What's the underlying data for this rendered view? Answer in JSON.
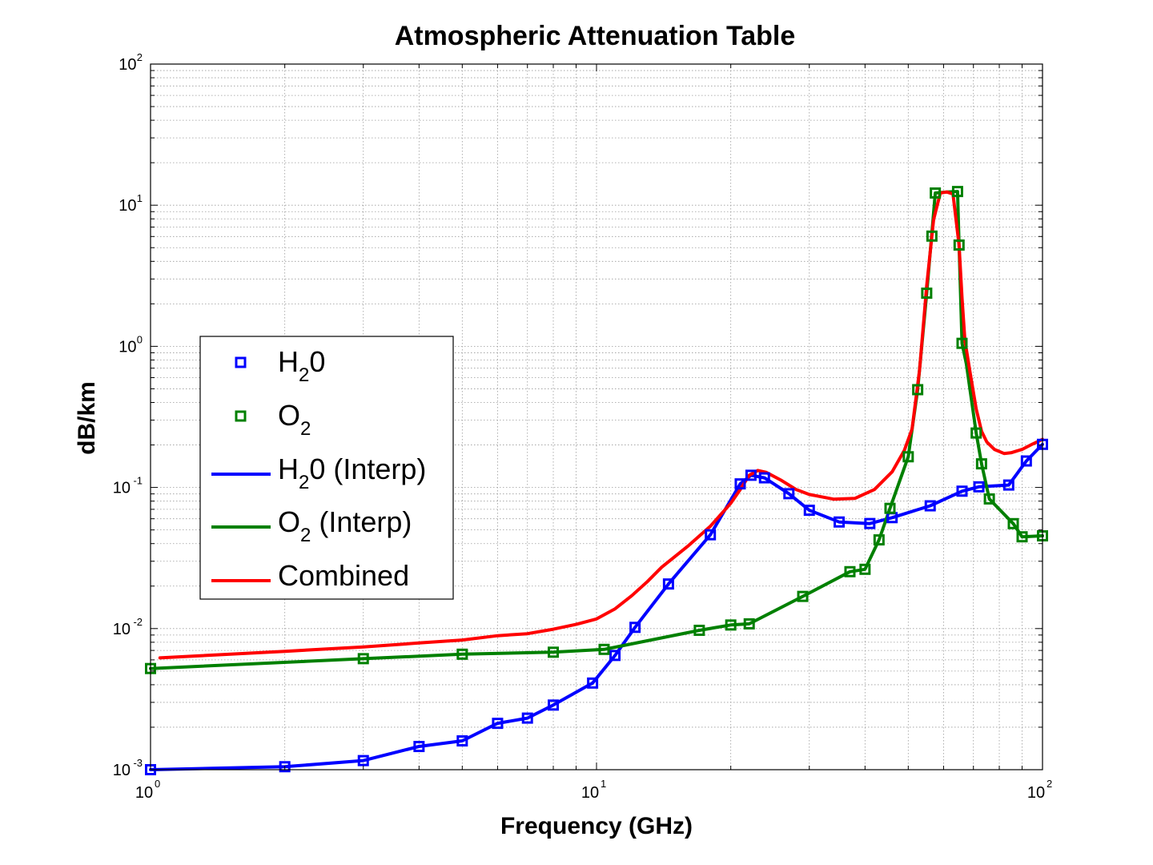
{
  "chart_data": {
    "type": "line",
    "title": "Atmospheric Attenuation Table",
    "xlabel": "Frequency (GHz)",
    "ylabel": "dB/km",
    "x_scale": "log",
    "y_scale": "log",
    "xlim": [
      1,
      100
    ],
    "ylim": [
      0.001,
      100
    ],
    "grid": true,
    "x_ticks": [
      {
        "base": "10",
        "exp": "0",
        "value": 1
      },
      {
        "base": "10",
        "exp": "1",
        "value": 10
      },
      {
        "base": "10",
        "exp": "2",
        "value": 100
      }
    ],
    "y_ticks": [
      {
        "base": "10",
        "exp": "-3",
        "value": 0.001
      },
      {
        "base": "10",
        "exp": "-2",
        "value": 0.01
      },
      {
        "base": "10",
        "exp": "-1",
        "value": 0.1
      },
      {
        "base": "10",
        "exp": "0",
        "value": 1
      },
      {
        "base": "10",
        "exp": "1",
        "value": 10
      },
      {
        "base": "10",
        "exp": "2",
        "value": 100
      }
    ],
    "legend_position": "center-left",
    "series": [
      {
        "name": "H20",
        "label_main": "H",
        "label_sub": "2",
        "label_rest": "0",
        "kind": "markers",
        "marker": "square",
        "color": "#0000ff",
        "points": [
          [
            1,
            0.001
          ],
          [
            2,
            0.00105
          ],
          [
            3,
            0.00116
          ],
          [
            4,
            0.00146
          ],
          [
            5,
            0.0016
          ],
          [
            6,
            0.00213
          ],
          [
            7,
            0.00232
          ],
          [
            8,
            0.00287
          ],
          [
            9.8,
            0.00411
          ],
          [
            11,
            0.00645
          ],
          [
            12.2,
            0.0102
          ],
          [
            14.5,
            0.0207
          ],
          [
            18,
            0.0462
          ],
          [
            21,
            0.106
          ],
          [
            22.2,
            0.122
          ],
          [
            23.8,
            0.117
          ],
          [
            27,
            0.0903
          ],
          [
            30,
            0.0689
          ],
          [
            35,
            0.0569
          ],
          [
            41,
            0.0555
          ],
          [
            46,
            0.0611
          ],
          [
            56,
            0.0741
          ],
          [
            66,
            0.0941
          ],
          [
            72,
            0.101
          ],
          [
            84,
            0.104
          ],
          [
            92,
            0.154
          ],
          [
            100,
            0.202
          ]
        ]
      },
      {
        "name": "O2",
        "label_main": "O",
        "label_sub": "2",
        "label_rest": "",
        "kind": "markers",
        "marker": "square",
        "color": "#008000",
        "points": [
          [
            1,
            0.00521
          ],
          [
            3,
            0.00612
          ],
          [
            5,
            0.00658
          ],
          [
            8,
            0.0068
          ],
          [
            10.4,
            0.00712
          ],
          [
            17,
            0.00972
          ],
          [
            20,
            0.0106
          ],
          [
            22,
            0.0108
          ],
          [
            29,
            0.0169
          ],
          [
            37,
            0.0253
          ],
          [
            40,
            0.0263
          ],
          [
            43,
            0.0425
          ],
          [
            45.5,
            0.0711
          ],
          [
            50,
            0.165
          ],
          [
            52.5,
            0.493
          ],
          [
            55,
            2.38
          ],
          [
            56.5,
            6.04
          ],
          [
            57.5,
            12.2
          ],
          [
            64.5,
            12.5
          ],
          [
            65,
            5.22
          ],
          [
            66,
            1.05
          ],
          [
            71,
            0.243
          ],
          [
            73,
            0.147
          ],
          [
            76,
            0.0829
          ],
          [
            86,
            0.0554
          ],
          [
            90,
            0.0447
          ],
          [
            100,
            0.0454
          ]
        ]
      },
      {
        "name": "H20 (Interp)",
        "label_main": "H",
        "label_sub": "2",
        "label_rest": "0 (Interp)",
        "kind": "line",
        "color": "#0000ff",
        "points": [
          [
            1,
            0.001
          ],
          [
            2,
            0.00105
          ],
          [
            3,
            0.00116
          ],
          [
            4,
            0.00146
          ],
          [
            5,
            0.0016
          ],
          [
            6,
            0.00213
          ],
          [
            7,
            0.00232
          ],
          [
            8,
            0.00287
          ],
          [
            9.8,
            0.00411
          ],
          [
            11,
            0.00645
          ],
          [
            12.2,
            0.0102
          ],
          [
            14.5,
            0.0207
          ],
          [
            18,
            0.0462
          ],
          [
            21,
            0.106
          ],
          [
            22.2,
            0.122
          ],
          [
            23.8,
            0.117
          ],
          [
            27,
            0.0903
          ],
          [
            30,
            0.0689
          ],
          [
            35,
            0.0569
          ],
          [
            41,
            0.0555
          ],
          [
            46,
            0.0611
          ],
          [
            56,
            0.0741
          ],
          [
            66,
            0.0941
          ],
          [
            72,
            0.101
          ],
          [
            84,
            0.104
          ],
          [
            92,
            0.154
          ],
          [
            100,
            0.202
          ]
        ]
      },
      {
        "name": "O2 (Interp)",
        "label_main": "O",
        "label_sub": "2",
        "label_rest": " (Interp)",
        "kind": "line",
        "color": "#008000",
        "points": [
          [
            1,
            0.00521
          ],
          [
            3,
            0.00612
          ],
          [
            5,
            0.00658
          ],
          [
            8,
            0.0068
          ],
          [
            10.4,
            0.00712
          ],
          [
            17,
            0.00972
          ],
          [
            20,
            0.0106
          ],
          [
            22,
            0.0108
          ],
          [
            29,
            0.0169
          ],
          [
            37,
            0.0253
          ],
          [
            40,
            0.0263
          ],
          [
            43,
            0.0425
          ],
          [
            45.5,
            0.0711
          ],
          [
            50,
            0.165
          ],
          [
            52.5,
            0.493
          ],
          [
            55,
            2.38
          ],
          [
            57.5,
            12.2
          ],
          [
            61,
            12.4
          ],
          [
            64.5,
            12.5
          ],
          [
            65,
            5.22
          ],
          [
            66,
            1.05
          ],
          [
            67.5,
            0.75
          ],
          [
            71,
            0.243
          ],
          [
            73,
            0.147
          ],
          [
            76,
            0.0829
          ],
          [
            86,
            0.0554
          ],
          [
            90,
            0.0447
          ],
          [
            100,
            0.0454
          ]
        ]
      },
      {
        "name": "Combined",
        "label_main": "Combined",
        "label_sub": "",
        "label_rest": "",
        "kind": "line",
        "color": "#ff0000",
        "points": [
          [
            1.05,
            0.0062
          ],
          [
            2,
            0.0069
          ],
          [
            3,
            0.0074
          ],
          [
            4,
            0.0079
          ],
          [
            5,
            0.0083
          ],
          [
            6,
            0.0089
          ],
          [
            7,
            0.0092
          ],
          [
            8,
            0.0099
          ],
          [
            9,
            0.0107
          ],
          [
            10,
            0.0117
          ],
          [
            11,
            0.0138
          ],
          [
            12,
            0.0171
          ],
          [
            13,
            0.0215
          ],
          [
            14,
            0.0272
          ],
          [
            16,
            0.0382
          ],
          [
            18,
            0.0531
          ],
          [
            20,
            0.0773
          ],
          [
            21,
            0.0966
          ],
          [
            22,
            0.122
          ],
          [
            23,
            0.132
          ],
          [
            24,
            0.128
          ],
          [
            26,
            0.112
          ],
          [
            28,
            0.0968
          ],
          [
            30,
            0.0891
          ],
          [
            34,
            0.0826
          ],
          [
            38,
            0.0837
          ],
          [
            42,
            0.0967
          ],
          [
            46,
            0.129
          ],
          [
            49,
            0.183
          ],
          [
            51,
            0.26
          ],
          [
            53,
            0.676
          ],
          [
            55,
            2.7
          ],
          [
            57,
            7.9
          ],
          [
            59,
            12.2
          ],
          [
            61,
            12.4
          ],
          [
            63,
            12.0
          ],
          [
            65,
            5.2
          ],
          [
            66,
            2.2
          ],
          [
            67,
            1.1
          ],
          [
            69,
            0.62
          ],
          [
            71,
            0.36
          ],
          [
            73,
            0.25
          ],
          [
            75,
            0.21
          ],
          [
            78,
            0.186
          ],
          [
            82,
            0.174
          ],
          [
            85,
            0.176
          ],
          [
            90,
            0.186
          ],
          [
            95,
            0.203
          ],
          [
            100,
            0.219
          ]
        ]
      }
    ]
  }
}
